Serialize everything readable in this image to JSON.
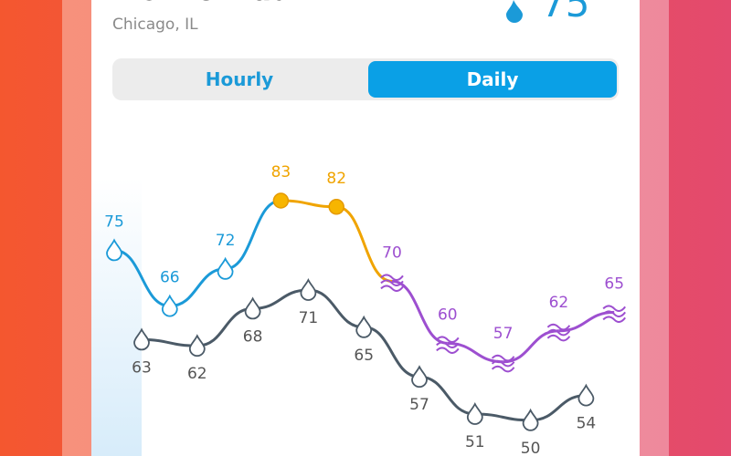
{
  "header": {
    "title": "Mom & Dad",
    "location": "Chicago, IL",
    "current_temp": "75°"
  },
  "tabs": {
    "items": [
      "Hourly",
      "Daily"
    ],
    "selected": 1
  },
  "forecast": {
    "highs": [
      75,
      66,
      72,
      83,
      82,
      70,
      60,
      57,
      62,
      65
    ],
    "high_colors": [
      "#1b9ad8",
      "#1b9ad8",
      "#1b9ad8",
      "#f0a400",
      "#f0a400",
      "#9d4fd0",
      "#9d4fd0",
      "#9d4fd0",
      "#9d4fd0",
      "#9d4fd0"
    ],
    "lows": [
      63,
      62,
      68,
      71,
      65,
      57,
      51,
      50,
      54
    ],
    "low_color": "#4b5a67"
  }
}
